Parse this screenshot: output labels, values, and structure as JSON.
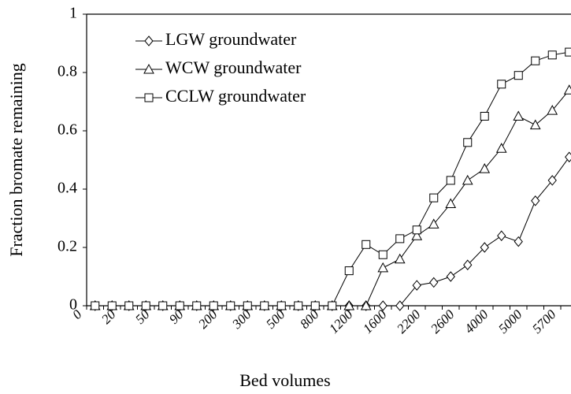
{
  "chart_data": {
    "type": "line",
    "x_label": "Bed volumes",
    "y_label": "Fraction bromate remaining",
    "categories": [
      "0",
      null,
      "20",
      null,
      "50",
      null,
      "90",
      null,
      "200",
      null,
      "300",
      null,
      "500",
      null,
      "800",
      null,
      "1200",
      null,
      "1600",
      null,
      "2200",
      null,
      "2600",
      null,
      "4000",
      null,
      "5000",
      null,
      "5700"
    ],
    "series": [
      {
        "name": "LGW groundwater",
        "color": "#000000",
        "marker": "diamond",
        "values": [
          0,
          0,
          0,
          0,
          0,
          0,
          0,
          0,
          0,
          0,
          0,
          0,
          0,
          0,
          0,
          0,
          0,
          0,
          0,
          0.07,
          0.08,
          0.1,
          0.14,
          0.2,
          0.24,
          0.22,
          0.36,
          0.43,
          0.51
        ]
      },
      {
        "name": "WCW groundwater",
        "color": "#000000",
        "marker": "triangle",
        "values": [
          0,
          0,
          0,
          0,
          0,
          0,
          0,
          0,
          0,
          0,
          0,
          0,
          0,
          0,
          0,
          0,
          0,
          0.13,
          0.16,
          0.24,
          0.28,
          0.35,
          0.43,
          0.47,
          0.54,
          0.65,
          0.62,
          0.67,
          0.74
        ]
      },
      {
        "name": "CCLW groundwater",
        "color": "#000000",
        "marker": "square",
        "values": [
          0,
          0,
          0,
          0,
          0,
          0,
          0,
          0,
          0,
          0,
          0,
          0,
          0,
          0,
          0,
          0.12,
          0.21,
          0.175,
          0.23,
          0.26,
          0.37,
          0.43,
          0.56,
          0.65,
          0.76,
          0.79,
          0.84,
          0.86,
          0.87
        ]
      }
    ],
    "ylim": [
      0,
      1
    ],
    "yticks": [
      0,
      0.2,
      0.4,
      0.6,
      0.8,
      1
    ],
    "legend": "upper left"
  }
}
